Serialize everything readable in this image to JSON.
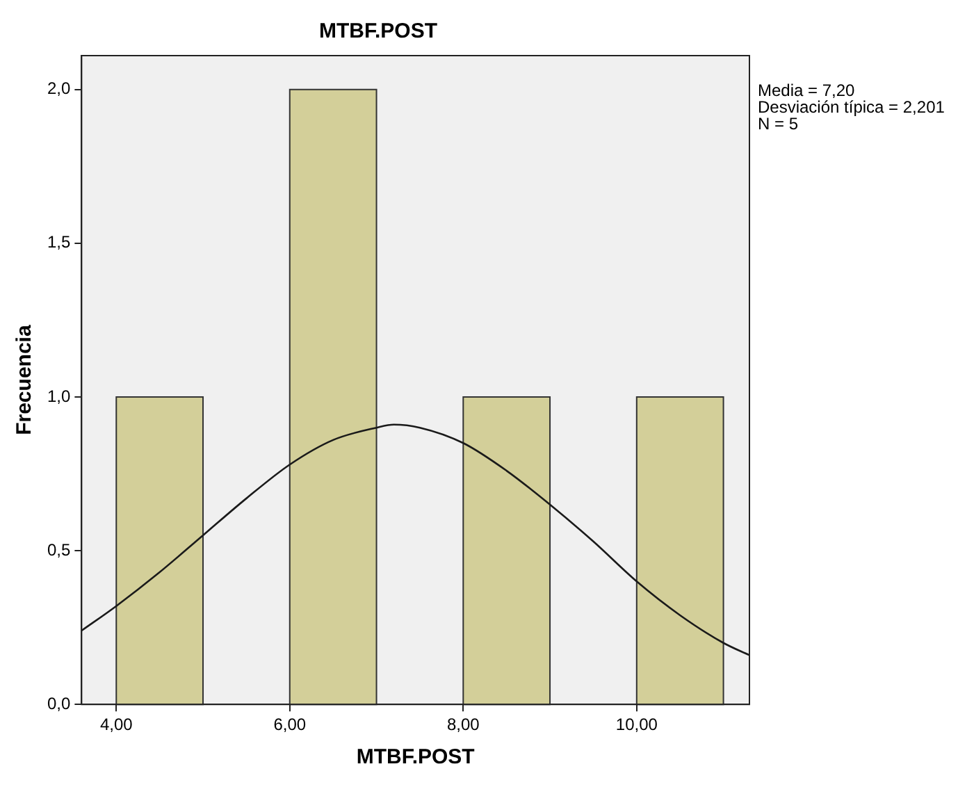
{
  "chart_data": {
    "type": "histogram",
    "title": "MTBF.POST",
    "xlabel": "MTBF.POST",
    "ylabel": "Frecuencia",
    "bins": [
      4,
      5,
      6,
      7,
      8,
      9,
      10,
      11
    ],
    "values": [
      1,
      0,
      2,
      0,
      1,
      0,
      1
    ],
    "color": "#d3cf99",
    "series": [
      {
        "type": "line",
        "color": "#1a1a1a",
        "x": [
          3.6,
          4,
          4.5,
          5,
          5.5,
          6,
          6.5,
          7,
          7.2,
          7.5,
          8,
          8.5,
          9,
          9.5,
          10,
          10.5,
          11,
          11.3
        ],
        "values": [
          0.24,
          0.32,
          0.43,
          0.55,
          0.67,
          0.78,
          0.86,
          0.9,
          0.91,
          0.9,
          0.85,
          0.76,
          0.65,
          0.53,
          0.4,
          0.29,
          0.2,
          0.16
        ]
      }
    ],
    "xlim": [
      3.6,
      11.3
    ],
    "xticks": [
      {
        "value": 4,
        "label": "4,00"
      },
      {
        "value": 6,
        "label": "6,00"
      },
      {
        "value": 8,
        "label": "8,00"
      },
      {
        "value": 10,
        "label": "10,00"
      }
    ],
    "ylim": [
      0,
      2.11
    ],
    "yticks": [
      {
        "value": 0,
        "label": "0,0"
      },
      {
        "value": 0.5,
        "label": "0,5"
      },
      {
        "value": 1,
        "label": "1,0"
      },
      {
        "value": 1.5,
        "label": "1,5"
      },
      {
        "value": 2,
        "label": "2,0"
      }
    ],
    "grid": false,
    "legend": false,
    "marker": "none",
    "annotations": [
      "Media = 7,20",
      "Desviación típica = 2,201",
      "N = 5"
    ]
  }
}
